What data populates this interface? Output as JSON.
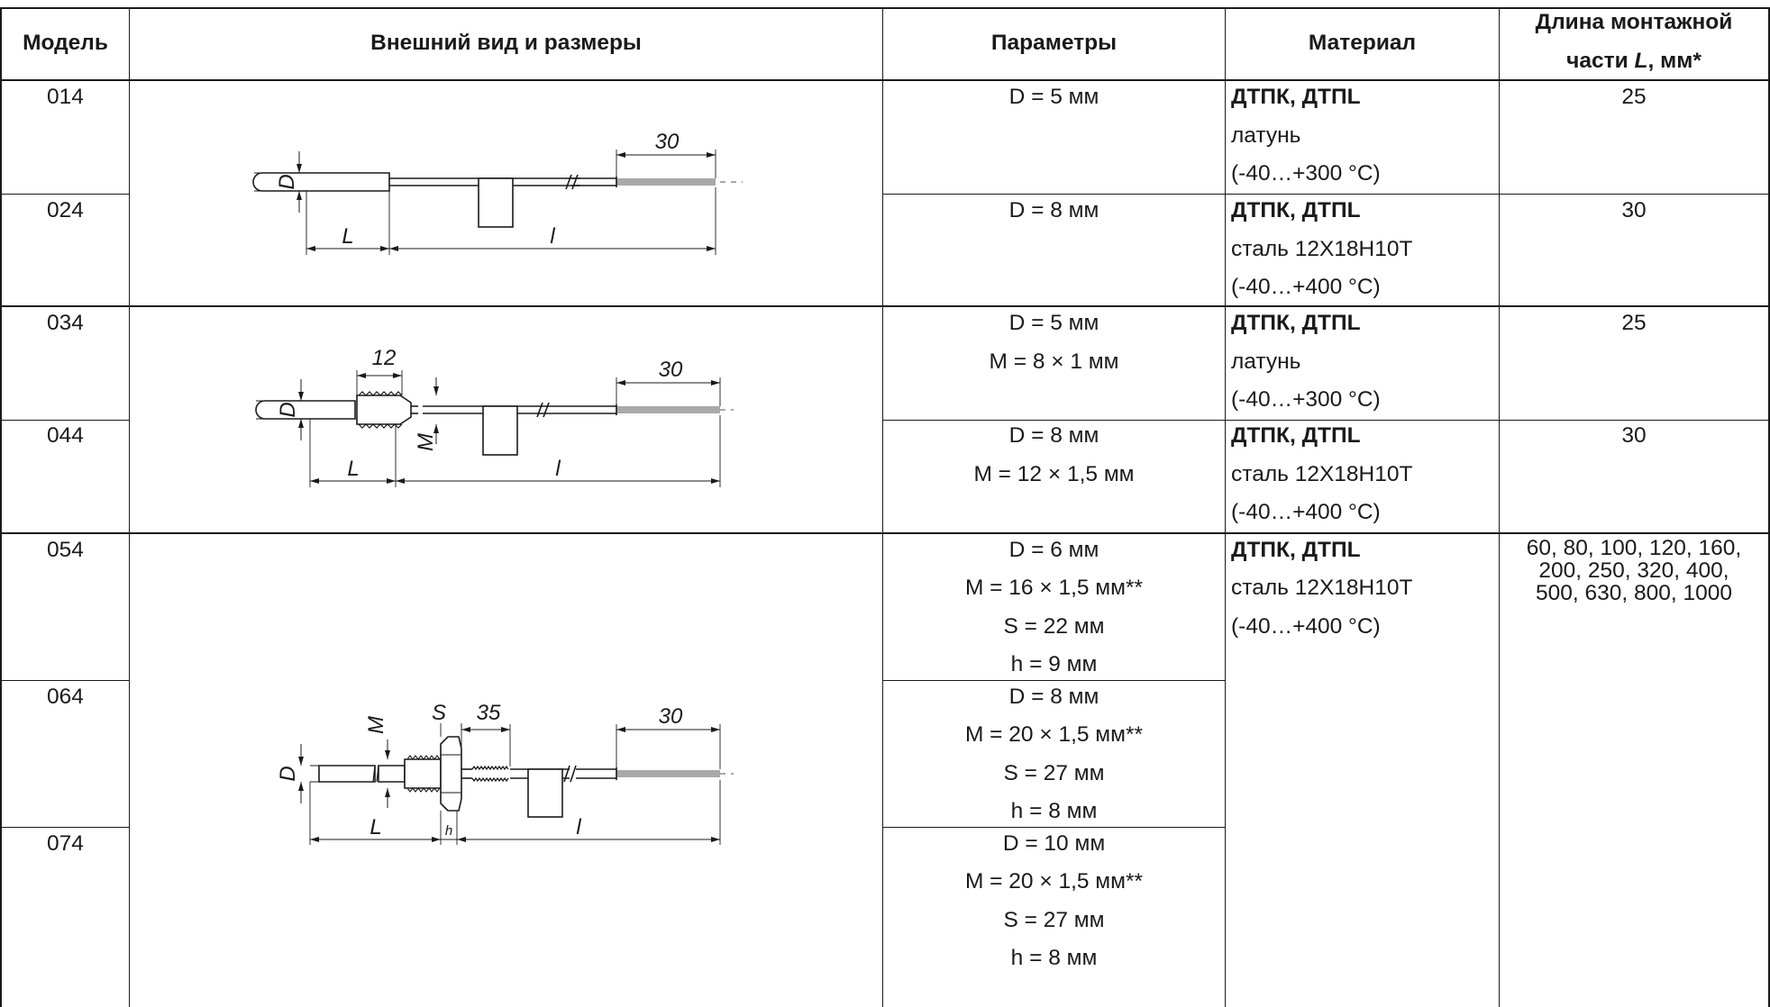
{
  "header": {
    "model": "Модель",
    "appearance": "Внешний вид и размеры",
    "parameters": "Параметры",
    "material": "Материал",
    "length_line1": "Длина монтажной",
    "length_line2_pre": "части ",
    "length_line2_var": "L",
    "length_line2_post": ", мм*"
  },
  "rows": [
    {
      "model": "014",
      "params": [
        "D = 5 мм"
      ],
      "material_title": "ДТПК, ДТПL",
      "material_lines": [
        "латунь",
        "(-40…+300 °C)"
      ],
      "length": [
        "25"
      ]
    },
    {
      "model": "024",
      "params": [
        "D = 8 мм"
      ],
      "material_title": "ДТПК, ДТПL",
      "material_lines": [
        "сталь 12Х18Н10Т",
        "(-40…+400 °C)"
      ],
      "length": [
        "30"
      ]
    },
    {
      "model": "034",
      "params": [
        "D = 5 мм",
        "M = 8 × 1 мм"
      ],
      "material_title": "ДТПК, ДТПL",
      "material_lines": [
        "латунь",
        "(-40…+300 °C)"
      ],
      "length": [
        "25"
      ]
    },
    {
      "model": "044",
      "params": [
        "D = 8 мм",
        "M = 12 × 1,5 мм"
      ],
      "material_title": "ДТПК, ДТПL",
      "material_lines": [
        "сталь 12Х18Н10Т",
        "(-40…+400 °C)"
      ],
      "length": [
        "30"
      ]
    },
    {
      "model": "054",
      "params": [
        "D = 6 мм",
        "M = 16 × 1,5 мм**",
        "S = 22 мм",
        "h = 9 мм"
      ],
      "material_title": "ДТПК, ДТПL",
      "material_lines": [
        "сталь 12Х18Н10Т",
        "(-40…+400 °C)"
      ],
      "length": [
        "60, 80, 100, 120, 160,",
        "200, 250, 320, 400,",
        "500, 630, 800, 1000"
      ]
    },
    {
      "model": "064",
      "params": [
        "D = 8 мм",
        "M = 20 × 1,5 мм**",
        "S = 27 мм",
        "h = 8 мм"
      ]
    },
    {
      "model": "074",
      "params": [
        "D = 10 мм",
        "M = 20 × 1,5 мм**",
        "S = 27 мм",
        "h = 8 мм"
      ]
    }
  ],
  "drawings": {
    "d1": {
      "dim_top": "30",
      "d": "D",
      "l_mount": "L",
      "l_cable": "l"
    },
    "d2": {
      "dim_thread": "12",
      "dim_top": "30",
      "d": "D",
      "m": "M",
      "l_mount": "L",
      "l_cable": "l"
    },
    "d3": {
      "m": "M",
      "s": "S",
      "dim_mid": "35",
      "dim_top": "30",
      "d": "D",
      "h": "h",
      "l_mount": "L",
      "l_cable": "l"
    }
  }
}
